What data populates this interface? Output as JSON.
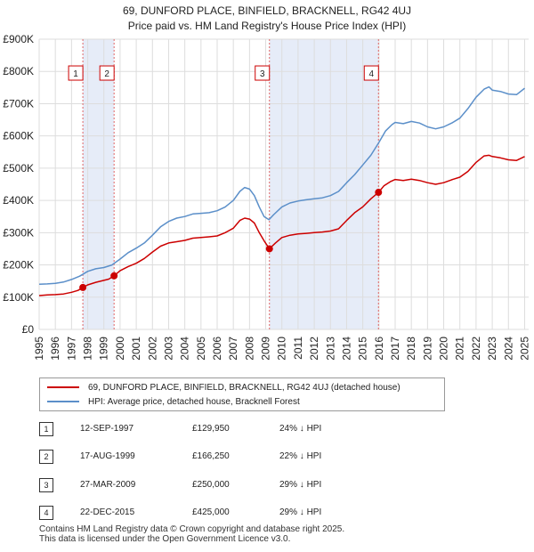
{
  "title": {
    "line1": "69, DUNFORD PLACE, BINFIELD, BRACKNELL, RG42 4UJ",
    "line2": "Price paid vs. HM Land Registry's House Price Index (HPI)"
  },
  "chart_data": {
    "type": "line",
    "ylim": [
      0,
      900000
    ],
    "xlim": [
      1995.0,
      2025.25
    ],
    "y_ticks": [
      {
        "value": 0,
        "label": "£0"
      },
      {
        "value": 100000,
        "label": "£100K"
      },
      {
        "value": 200000,
        "label": "£200K"
      },
      {
        "value": 300000,
        "label": "£300K"
      },
      {
        "value": 400000,
        "label": "£400K"
      },
      {
        "value": 500000,
        "label": "£500K"
      },
      {
        "value": 600000,
        "label": "£600K"
      },
      {
        "value": 700000,
        "label": "£700K"
      },
      {
        "value": 800000,
        "label": "£800K"
      },
      {
        "value": 900000,
        "label": "£900K"
      }
    ],
    "x_ticks": [
      "1995",
      "1996",
      "1997",
      "1998",
      "1999",
      "2000",
      "2001",
      "2002",
      "2003",
      "2004",
      "2005",
      "2006",
      "2007",
      "2008",
      "2009",
      "2010",
      "2011",
      "2012",
      "2013",
      "2014",
      "2015",
      "2016",
      "2017",
      "2018",
      "2019",
      "2020",
      "2021",
      "2022",
      "2023",
      "2024",
      "2025"
    ],
    "grid": true,
    "shaded_periods": [
      [
        1997.7,
        1999.63
      ],
      [
        2009.23,
        2015.97
      ]
    ],
    "series": [
      {
        "name": "69, DUNFORD PLACE, BINFIELD, BRACKNELL, RG42 4UJ (detached house)",
        "color": "#cc0000",
        "points": [
          [
            1995.0,
            105000
          ],
          [
            1995.5,
            107000
          ],
          [
            1996.0,
            108000
          ],
          [
            1996.5,
            110000
          ],
          [
            1997.0,
            115000
          ],
          [
            1997.4,
            121000
          ],
          [
            1997.7,
            129950
          ],
          [
            1998.0,
            138000
          ],
          [
            1998.5,
            146000
          ],
          [
            1999.0,
            152000
          ],
          [
            1999.3,
            156000
          ],
          [
            1999.63,
            166250
          ],
          [
            2000.0,
            182000
          ],
          [
            2000.5,
            195000
          ],
          [
            2001.0,
            205000
          ],
          [
            2001.5,
            220000
          ],
          [
            2002.0,
            240000
          ],
          [
            2002.5,
            258000
          ],
          [
            2003.0,
            268000
          ],
          [
            2003.5,
            272000
          ],
          [
            2004.0,
            276000
          ],
          [
            2004.5,
            283000
          ],
          [
            2005.0,
            285000
          ],
          [
            2005.5,
            287000
          ],
          [
            2006.0,
            290000
          ],
          [
            2006.5,
            300000
          ],
          [
            2007.0,
            314000
          ],
          [
            2007.4,
            338000
          ],
          [
            2007.7,
            345000
          ],
          [
            2008.0,
            342000
          ],
          [
            2008.3,
            330000
          ],
          [
            2008.6,
            300000
          ],
          [
            2008.9,
            275000
          ],
          [
            2009.23,
            250000
          ],
          [
            2009.6,
            268000
          ],
          [
            2010.0,
            285000
          ],
          [
            2010.5,
            292000
          ],
          [
            2011.0,
            296000
          ],
          [
            2011.5,
            298000
          ],
          [
            2012.0,
            300000
          ],
          [
            2012.5,
            302000
          ],
          [
            2013.0,
            305000
          ],
          [
            2013.5,
            312000
          ],
          [
            2014.0,
            338000
          ],
          [
            2014.5,
            362000
          ],
          [
            2015.0,
            380000
          ],
          [
            2015.5,
            405000
          ],
          [
            2015.97,
            425000
          ],
          [
            2016.3,
            445000
          ],
          [
            2016.7,
            458000
          ],
          [
            2017.0,
            465000
          ],
          [
            2017.5,
            462000
          ],
          [
            2018.0,
            466000
          ],
          [
            2018.5,
            462000
          ],
          [
            2019.0,
            455000
          ],
          [
            2019.5,
            450000
          ],
          [
            2020.0,
            455000
          ],
          [
            2020.5,
            464000
          ],
          [
            2021.0,
            472000
          ],
          [
            2021.5,
            490000
          ],
          [
            2022.0,
            518000
          ],
          [
            2022.5,
            538000
          ],
          [
            2022.8,
            540000
          ],
          [
            2023.0,
            536000
          ],
          [
            2023.5,
            532000
          ],
          [
            2024.0,
            526000
          ],
          [
            2024.5,
            524000
          ],
          [
            2025.0,
            536000
          ]
        ]
      },
      {
        "name": "HPI: Average price, detached house, Bracknell Forest",
        "color": "#5b8fc9",
        "points": [
          [
            1995.0,
            140000
          ],
          [
            1995.5,
            141000
          ],
          [
            1996.0,
            143000
          ],
          [
            1996.5,
            147000
          ],
          [
            1997.0,
            155000
          ],
          [
            1997.5,
            165000
          ],
          [
            1998.0,
            180000
          ],
          [
            1998.5,
            188000
          ],
          [
            1999.0,
            192000
          ],
          [
            1999.5,
            200000
          ],
          [
            2000.0,
            218000
          ],
          [
            2000.5,
            238000
          ],
          [
            2001.0,
            252000
          ],
          [
            2001.5,
            268000
          ],
          [
            2002.0,
            292000
          ],
          [
            2002.5,
            318000
          ],
          [
            2003.0,
            335000
          ],
          [
            2003.5,
            345000
          ],
          [
            2004.0,
            350000
          ],
          [
            2004.5,
            358000
          ],
          [
            2005.0,
            360000
          ],
          [
            2005.5,
            362000
          ],
          [
            2006.0,
            368000
          ],
          [
            2006.5,
            380000
          ],
          [
            2007.0,
            400000
          ],
          [
            2007.4,
            428000
          ],
          [
            2007.7,
            440000
          ],
          [
            2008.0,
            435000
          ],
          [
            2008.3,
            415000
          ],
          [
            2008.6,
            380000
          ],
          [
            2008.9,
            350000
          ],
          [
            2009.2,
            340000
          ],
          [
            2009.5,
            356000
          ],
          [
            2010.0,
            380000
          ],
          [
            2010.5,
            392000
          ],
          [
            2011.0,
            398000
          ],
          [
            2011.5,
            402000
          ],
          [
            2012.0,
            405000
          ],
          [
            2012.5,
            408000
          ],
          [
            2013.0,
            415000
          ],
          [
            2013.5,
            428000
          ],
          [
            2014.0,
            455000
          ],
          [
            2014.5,
            480000
          ],
          [
            2015.0,
            510000
          ],
          [
            2015.5,
            540000
          ],
          [
            2016.0,
            580000
          ],
          [
            2016.4,
            615000
          ],
          [
            2016.8,
            635000
          ],
          [
            2017.0,
            642000
          ],
          [
            2017.5,
            638000
          ],
          [
            2018.0,
            645000
          ],
          [
            2018.5,
            640000
          ],
          [
            2019.0,
            628000
          ],
          [
            2019.5,
            622000
          ],
          [
            2020.0,
            628000
          ],
          [
            2020.5,
            640000
          ],
          [
            2021.0,
            655000
          ],
          [
            2021.5,
            685000
          ],
          [
            2022.0,
            720000
          ],
          [
            2022.5,
            745000
          ],
          [
            2022.8,
            752000
          ],
          [
            2023.0,
            742000
          ],
          [
            2023.5,
            738000
          ],
          [
            2024.0,
            730000
          ],
          [
            2024.5,
            728000
          ],
          [
            2025.0,
            748000
          ]
        ]
      }
    ],
    "sales": [
      {
        "num": "1",
        "x": 1997.7,
        "y": 129950,
        "label_y": 795000
      },
      {
        "num": "2",
        "x": 1999.63,
        "y": 166250,
        "label_y": 795000
      },
      {
        "num": "3",
        "x": 2009.23,
        "y": 250000,
        "label_y": 795000
      },
      {
        "num": "4",
        "x": 2015.97,
        "y": 425000,
        "label_y": 795000
      }
    ]
  },
  "legend": {
    "property_label": "69, DUNFORD PLACE, BINFIELD, BRACKNELL, RG42 4UJ (detached house)",
    "hpi_label": "HPI: Average price, detached house, Bracknell Forest",
    "property_color": "#cc0000",
    "hpi_color": "#5b8fc9"
  },
  "transactions": [
    {
      "num": "1",
      "date": "12-SEP-1997",
      "price": "£129,950",
      "hpi": "24% ↓ HPI"
    },
    {
      "num": "2",
      "date": "17-AUG-1999",
      "price": "£166,250",
      "hpi": "22% ↓ HPI"
    },
    {
      "num": "3",
      "date": "27-MAR-2009",
      "price": "£250,000",
      "hpi": "29% ↓ HPI"
    },
    {
      "num": "4",
      "date": "22-DEC-2015",
      "price": "£425,000",
      "hpi": "29% ↓ HPI"
    }
  ],
  "footer": {
    "line1": "Contains HM Land Registry data © Crown copyright and database right 2025.",
    "line2": "This data is licensed under the Open Government Licence v3.0."
  }
}
